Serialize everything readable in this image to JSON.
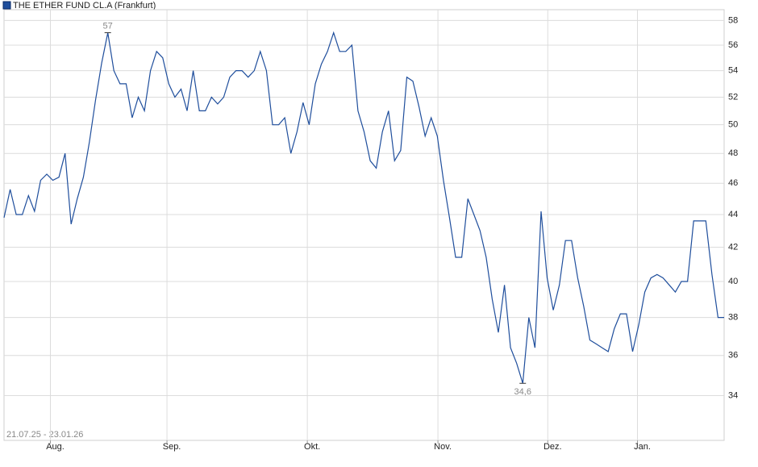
{
  "chart_data": {
    "type": "line",
    "legend": "THE ETHER FUND   CL.A (Frankfurt)",
    "date_range": "21.07.25 - 23.01.26",
    "log_scale": true,
    "grid": true,
    "series": [
      {
        "name": "THE ETHER FUND   CL.A (Frankfurt)",
        "color": "#1f4e9c",
        "values": [
          43.8,
          45.6,
          44,
          44,
          45.2,
          44.2,
          46.2,
          46.6,
          46.2,
          46.4,
          48,
          43.4,
          45,
          46.4,
          48.8,
          51.8,
          54.6,
          57,
          54,
          53,
          53,
          50.5,
          52,
          51,
          54,
          55.5,
          55,
          53,
          52,
          52.6,
          51,
          54,
          51,
          51,
          52,
          51.5,
          52,
          53.5,
          54,
          54,
          53.5,
          54,
          55.5,
          54,
          50,
          50,
          50.5,
          48,
          49.5,
          51.6,
          50,
          53,
          54.5,
          55.5,
          57,
          55.5,
          55.5,
          56,
          51,
          49.5,
          47.5,
          47,
          49.5,
          51,
          47.5,
          48.2,
          53.5,
          53.2,
          51.3,
          49.2,
          50.5,
          49.2,
          46.2,
          43.8,
          41.4,
          41.4,
          45,
          44,
          43,
          41.4,
          39,
          37.2,
          39.8,
          36.4,
          35.6,
          34.6,
          38,
          36.4,
          44.2,
          40.2,
          38.4,
          39.8,
          42.4,
          42.4,
          40.2,
          38.6,
          36.8,
          36.6,
          36.4,
          36.2,
          37.4,
          38.2,
          38.2,
          36.2,
          37.6,
          39.4,
          40.2,
          40.4,
          40.2,
          39.8,
          39.4,
          40,
          40,
          43.6,
          43.6,
          43.6,
          40.4,
          38,
          38
        ]
      }
    ],
    "annotations": [
      {
        "label": "57",
        "value": 57
      },
      {
        "label": "34,6",
        "value": 34.6
      }
    ],
    "xlim": [
      0,
      118
    ],
    "xticks": [
      {
        "value": 7.6,
        "label": "Aug."
      },
      {
        "value": 26.7,
        "label": "Sep."
      },
      {
        "value": 49.7,
        "label": "Okt."
      },
      {
        "value": 71.1,
        "label": "Nov."
      },
      {
        "value": 89.1,
        "label": "Dez."
      },
      {
        "value": 103.8,
        "label": "Jan."
      }
    ],
    "ylim": [
      31.9,
      58.9
    ],
    "yticks": [
      34,
      36,
      38,
      40,
      42,
      44,
      46,
      48,
      50,
      52,
      54,
      56,
      58
    ]
  }
}
